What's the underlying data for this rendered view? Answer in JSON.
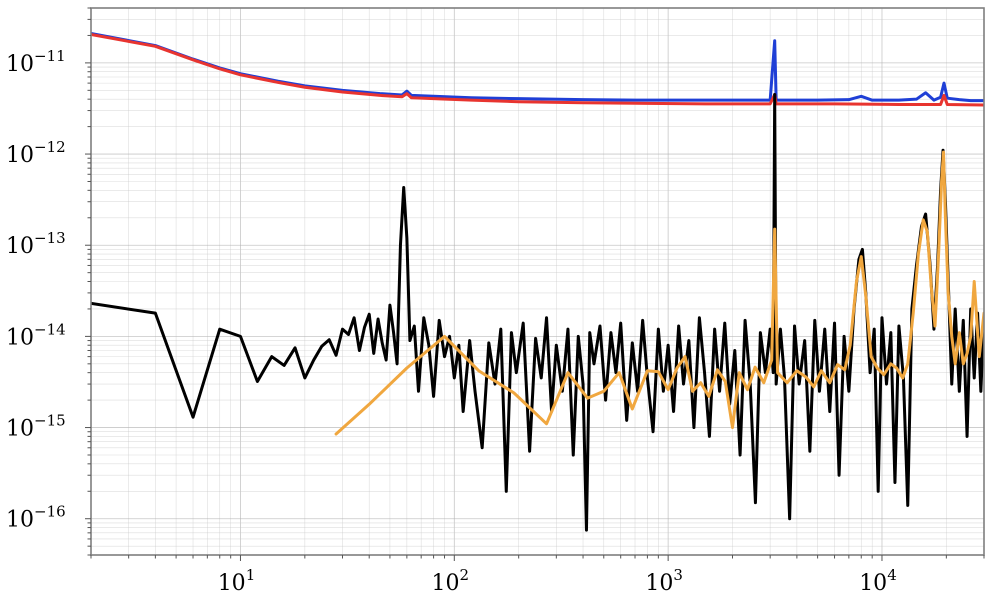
{
  "chart_data": {
    "type": "line",
    "title": "",
    "xlabel": "",
    "ylabel": "",
    "xscale": "log",
    "yscale": "log",
    "xlim": [
      2,
      30000
    ],
    "ylim": [
      4e-17,
      4e-11
    ],
    "grid": "major and minor",
    "legend": "none",
    "x_tick_labels": [
      {
        "value": 10,
        "base": "10",
        "exp": "1"
      },
      {
        "value": 100,
        "base": "10",
        "exp": "2"
      },
      {
        "value": 1000,
        "base": "10",
        "exp": "3"
      },
      {
        "value": 10000,
        "base": "10",
        "exp": "4"
      }
    ],
    "y_tick_labels": [
      {
        "value": 1e-11,
        "base": "10",
        "exp": "−11"
      },
      {
        "value": 1e-12,
        "base": "10",
        "exp": "−12"
      },
      {
        "value": 1e-13,
        "base": "10",
        "exp": "−13"
      },
      {
        "value": 1e-14,
        "base": "10",
        "exp": "−14"
      },
      {
        "value": 1e-15,
        "base": "10",
        "exp": "−15"
      },
      {
        "value": 1e-16,
        "base": "10",
        "exp": "−16"
      }
    ],
    "series": [
      {
        "color": "#1f3fd6",
        "points": [
          [
            2,
            2.1e-11
          ],
          [
            4,
            1.55e-11
          ],
          [
            6,
            1.1e-11
          ],
          [
            8,
            8.8e-12
          ],
          [
            10,
            7.6e-12
          ],
          [
            15,
            6.3e-12
          ],
          [
            20,
            5.6e-12
          ],
          [
            30,
            5e-12
          ],
          [
            45,
            4.6e-12
          ],
          [
            57,
            4.45e-12
          ],
          [
            60,
            4.9e-12
          ],
          [
            63,
            4.4e-12
          ],
          [
            80,
            4.3e-12
          ],
          [
            120,
            4.15e-12
          ],
          [
            200,
            4.05e-12
          ],
          [
            400,
            3.95e-12
          ],
          [
            800,
            3.9e-12
          ],
          [
            1500,
            3.9e-12
          ],
          [
            3000,
            3.9e-12
          ],
          [
            3150,
            1.75e-11
          ],
          [
            3200,
            3.9e-12
          ],
          [
            5000,
            3.9e-12
          ],
          [
            7000,
            3.95e-12
          ],
          [
            8000,
            4.3e-12
          ],
          [
            9000,
            3.9e-12
          ],
          [
            12000,
            3.9e-12
          ],
          [
            14500,
            4e-12
          ],
          [
            16000,
            4.7e-12
          ],
          [
            17500,
            3.9e-12
          ],
          [
            18800,
            4.2e-12
          ],
          [
            19500,
            6e-12
          ],
          [
            20200,
            4.1e-12
          ],
          [
            23000,
            3.95e-12
          ],
          [
            26000,
            3.85e-12
          ],
          [
            30000,
            3.85e-12
          ]
        ]
      },
      {
        "color": "#e8342f",
        "points": [
          [
            2,
            2.05e-11
          ],
          [
            4,
            1.52e-11
          ],
          [
            6,
            1.08e-11
          ],
          [
            8,
            8.6e-12
          ],
          [
            10,
            7.4e-12
          ],
          [
            15,
            6.1e-12
          ],
          [
            20,
            5.4e-12
          ],
          [
            30,
            4.8e-12
          ],
          [
            45,
            4.4e-12
          ],
          [
            57,
            4.25e-12
          ],
          [
            60,
            4.6e-12
          ],
          [
            63,
            4.15e-12
          ],
          [
            80,
            4.05e-12
          ],
          [
            120,
            3.9e-12
          ],
          [
            200,
            3.75e-12
          ],
          [
            400,
            3.65e-12
          ],
          [
            800,
            3.6e-12
          ],
          [
            1500,
            3.55e-12
          ],
          [
            3000,
            3.55e-12
          ],
          [
            3150,
            4.5e-12
          ],
          [
            3200,
            3.55e-12
          ],
          [
            6000,
            3.55e-12
          ],
          [
            12000,
            3.5e-12
          ],
          [
            18800,
            3.5e-12
          ],
          [
            19500,
            4.4e-12
          ],
          [
            20200,
            3.5e-12
          ],
          [
            30000,
            3.45e-12
          ]
        ]
      },
      {
        "color": "#000000",
        "points": [
          [
            2,
            2.3e-14
          ],
          [
            4,
            1.8e-14
          ],
          [
            6,
            1.3e-15
          ],
          [
            8,
            1.2e-14
          ],
          [
            10,
            1e-14
          ],
          [
            12,
            3.2e-15
          ],
          [
            14,
            6e-15
          ],
          [
            16,
            4.8e-15
          ],
          [
            18,
            7.5e-15
          ],
          [
            20,
            3.5e-15
          ],
          [
            22,
            5.5e-15
          ],
          [
            24,
            7.8e-15
          ],
          [
            26,
            9.2e-15
          ],
          [
            28,
            6.2e-15
          ],
          [
            30,
            1.2e-14
          ],
          [
            32,
            1.05e-14
          ],
          [
            34,
            1.6e-14
          ],
          [
            36,
            7e-15
          ],
          [
            38,
            1.25e-14
          ],
          [
            40,
            1.75e-14
          ],
          [
            42,
            6.5e-15
          ],
          [
            44,
            1.55e-14
          ],
          [
            46,
            8.5e-15
          ],
          [
            48,
            5.5e-15
          ],
          [
            50,
            2.2e-14
          ],
          [
            52,
            1.1e-14
          ],
          [
            54,
            5e-15
          ],
          [
            56,
            1e-13
          ],
          [
            58,
            4.3e-13
          ],
          [
            60,
            1.2e-13
          ],
          [
            62,
            9e-15
          ],
          [
            65,
            1.3e-14
          ],
          [
            68,
            2.5e-15
          ],
          [
            72,
            1.6e-14
          ],
          [
            76,
            8e-15
          ],
          [
            80,
            2.2e-15
          ],
          [
            85,
            1.5e-14
          ],
          [
            90,
            6e-15
          ],
          [
            95,
            1e-14
          ],
          [
            100,
            3.5e-15
          ],
          [
            105,
            8e-15
          ],
          [
            110,
            1.5e-15
          ],
          [
            118,
            9e-15
          ],
          [
            125,
            2.5e-15
          ],
          [
            135,
            6e-16
          ],
          [
            145,
            8.5e-15
          ],
          [
            155,
            3e-15
          ],
          [
            165,
            1.2e-14
          ],
          [
            175,
            2e-16
          ],
          [
            185,
            1.1e-14
          ],
          [
            195,
            4e-15
          ],
          [
            210,
            1.4e-14
          ],
          [
            225,
            5.5e-16
          ],
          [
            240,
            9.5e-15
          ],
          [
            255,
            3.5e-15
          ],
          [
            270,
            1.6e-14
          ],
          [
            285,
            1.5e-15
          ],
          [
            300,
            8e-15
          ],
          [
            320,
            2.5e-15
          ],
          [
            340,
            1.2e-14
          ],
          [
            360,
            5e-16
          ],
          [
            380,
            1e-14
          ],
          [
            400,
            3e-15
          ],
          [
            415,
            7.5e-17
          ],
          [
            430,
            1.1e-14
          ],
          [
            450,
            5e-15
          ],
          [
            480,
            1.3e-14
          ],
          [
            510,
            2e-15
          ],
          [
            540,
            1.1e-14
          ],
          [
            570,
            4e-15
          ],
          [
            600,
            1.4e-14
          ],
          [
            640,
            1.2e-15
          ],
          [
            680,
            8.5e-15
          ],
          [
            720,
            2.5e-15
          ],
          [
            760,
            1.5e-14
          ],
          [
            800,
            3.5e-15
          ],
          [
            850,
            9e-16
          ],
          [
            900,
            1.2e-14
          ],
          [
            950,
            2.5e-15
          ],
          [
            1000,
            8e-15
          ],
          [
            1060,
            1.5e-15
          ],
          [
            1120,
            1.3e-14
          ],
          [
            1180,
            3e-15
          ],
          [
            1250,
            9e-15
          ],
          [
            1320,
            1e-15
          ],
          [
            1400,
            1.6e-14
          ],
          [
            1480,
            4e-15
          ],
          [
            1560,
            8e-16
          ],
          [
            1650,
            1.2e-14
          ],
          [
            1740,
            2.5e-15
          ],
          [
            1840,
            1.4e-14
          ],
          [
            1940,
            1.8e-15
          ],
          [
            2050,
            7e-15
          ],
          [
            2170,
            5e-16
          ],
          [
            2290,
            1.5e-14
          ],
          [
            2420,
            3e-15
          ],
          [
            2560,
            1.5e-16
          ],
          [
            2700,
            1.1e-14
          ],
          [
            2850,
            4e-15
          ],
          [
            3000,
            1.2e-14
          ],
          [
            3100,
            4e-15
          ],
          [
            3150,
            4.5e-12
          ],
          [
            3200,
            3e-15
          ],
          [
            3350,
            1.2e-14
          ],
          [
            3500,
            3.5e-15
          ],
          [
            3700,
            1e-16
          ],
          [
            3900,
            1.3e-14
          ],
          [
            4100,
            3e-15
          ],
          [
            4350,
            9e-15
          ],
          [
            4600,
            5.5e-16
          ],
          [
            4850,
            1.5e-14
          ],
          [
            5100,
            2.5e-15
          ],
          [
            5400,
            1.2e-14
          ],
          [
            5700,
            1.5e-15
          ],
          [
            6000,
            1.4e-14
          ],
          [
            6300,
            3e-16
          ],
          [
            6650,
            1e-14
          ],
          [
            7000,
            2.5e-15
          ],
          [
            7400,
            2e-14
          ],
          [
            7800,
            7e-14
          ],
          [
            8100,
            9e-14
          ],
          [
            8400,
            3e-14
          ],
          [
            8800,
            4e-15
          ],
          [
            9200,
            1.2e-14
          ],
          [
            9600,
            2e-16
          ],
          [
            10000,
            1.6e-14
          ],
          [
            10500,
            3e-15
          ],
          [
            11000,
            1.1e-14
          ],
          [
            11500,
            2.5e-16
          ],
          [
            12000,
            1.3e-14
          ],
          [
            12600,
            3.5e-15
          ],
          [
            13200,
            1.4e-16
          ],
          [
            13800,
            2e-14
          ],
          [
            14500,
            6e-14
          ],
          [
            15300,
            1.6e-13
          ],
          [
            16000,
            2.2e-13
          ],
          [
            16800,
            6e-14
          ],
          [
            17500,
            1.2e-14
          ],
          [
            18200,
            6e-14
          ],
          [
            18800,
            4e-13
          ],
          [
            19300,
            1.1e-12
          ],
          [
            19800,
            3e-13
          ],
          [
            20500,
            3e-14
          ],
          [
            21200,
            3e-15
          ],
          [
            22000,
            2e-14
          ],
          [
            23000,
            2.5e-15
          ],
          [
            24000,
            1.5e-14
          ],
          [
            25000,
            8e-16
          ],
          [
            26000,
            2e-14
          ],
          [
            27000,
            3.5e-15
          ],
          [
            28000,
            1.8e-14
          ],
          [
            29000,
            2.5e-15
          ],
          [
            30000,
            1.6e-14
          ]
        ]
      },
      {
        "color": "#f0a73f",
        "points": [
          [
            28,
            8.5e-16
          ],
          [
            40,
            1.8e-15
          ],
          [
            60,
            4.5e-15
          ],
          [
            90,
            1e-14
          ],
          [
            130,
            4.2e-15
          ],
          [
            190,
            2.4e-15
          ],
          [
            270,
            1.1e-15
          ],
          [
            340,
            4e-15
          ],
          [
            420,
            2.1e-15
          ],
          [
            500,
            2.5e-15
          ],
          [
            590,
            4e-15
          ],
          [
            680,
            1.6e-15
          ],
          [
            800,
            4.2e-15
          ],
          [
            900,
            4.1e-15
          ],
          [
            1000,
            2.6e-15
          ],
          [
            1100,
            4.5e-15
          ],
          [
            1200,
            6e-15
          ],
          [
            1300,
            2.5e-15
          ],
          [
            1420,
            3.1e-15
          ],
          [
            1550,
            2.2e-15
          ],
          [
            1700,
            4.3e-15
          ],
          [
            1850,
            3.2e-15
          ],
          [
            2000,
            1e-15
          ],
          [
            2150,
            4e-15
          ],
          [
            2350,
            2.6e-15
          ],
          [
            2550,
            4.6e-15
          ],
          [
            2800,
            3.1e-15
          ],
          [
            3050,
            5.5e-15
          ],
          [
            3150,
            1.5e-13
          ],
          [
            3250,
            4e-15
          ],
          [
            3600,
            3.1e-15
          ],
          [
            4000,
            4.2e-15
          ],
          [
            4400,
            3.6e-15
          ],
          [
            4800,
            2.8e-15
          ],
          [
            5200,
            4.2e-15
          ],
          [
            5700,
            3.1e-15
          ],
          [
            6200,
            4.9e-15
          ],
          [
            6700,
            4.3e-15
          ],
          [
            7100,
            8e-15
          ],
          [
            7600,
            4e-14
          ],
          [
            8000,
            7.5e-14
          ],
          [
            8400,
            2.8e-14
          ],
          [
            8900,
            6e-15
          ],
          [
            9500,
            4.5e-15
          ],
          [
            10200,
            3.8e-15
          ],
          [
            11000,
            5e-15
          ],
          [
            11700,
            4.5e-15
          ],
          [
            12500,
            3.5e-15
          ],
          [
            13200,
            5e-15
          ],
          [
            14000,
            1.8e-14
          ],
          [
            14800,
            8e-14
          ],
          [
            15600,
            1.9e-13
          ],
          [
            16300,
            1.4e-13
          ],
          [
            17000,
            3.5e-14
          ],
          [
            17700,
            1.3e-14
          ],
          [
            18400,
            8e-14
          ],
          [
            19000,
            5e-13
          ],
          [
            19400,
            1.05e-12
          ],
          [
            19800,
            2e-13
          ],
          [
            20400,
            3e-14
          ],
          [
            21200,
            1e-14
          ],
          [
            22000,
            5e-15
          ],
          [
            23000,
            1.1e-14
          ],
          [
            24000,
            5e-15
          ],
          [
            25000,
            6.5e-15
          ],
          [
            26000,
            1e-14
          ],
          [
            27000,
            4e-14
          ],
          [
            28500,
            6e-15
          ],
          [
            30000,
            1.8e-14
          ]
        ]
      }
    ]
  }
}
